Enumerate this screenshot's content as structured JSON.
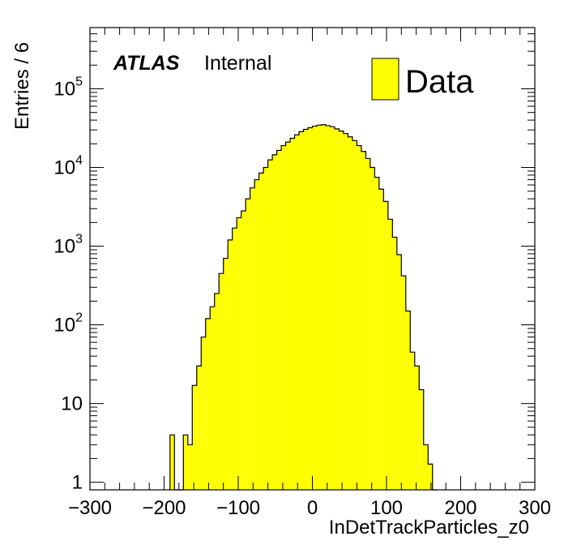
{
  "chart_data": {
    "type": "histogram",
    "xlabel": "InDetTrackParticles_z0",
    "ylabel": "Entries / 6",
    "xlim": [
      -300,
      300
    ],
    "ylim": [
      0.8,
      600000
    ],
    "yscale": "log",
    "x_ticks": [
      "−300",
      "−200",
      "−100",
      "0",
      "100",
      "200",
      "300"
    ],
    "y_ticks": [
      {
        "base": "1",
        "exp": ""
      },
      {
        "base": "10",
        "exp": ""
      },
      {
        "base": "10",
        "exp": "2"
      },
      {
        "base": "10",
        "exp": "3"
      },
      {
        "base": "10",
        "exp": "4"
      },
      {
        "base": "10",
        "exp": "5"
      }
    ],
    "bin_width": 6,
    "first_bin_low": -192,
    "counts": [
      4,
      0,
      0,
      4,
      3,
      17,
      30,
      70,
      120,
      170,
      250,
      450,
      700,
      1200,
      1700,
      2300,
      2800,
      4000,
      5500,
      7000,
      8500,
      10000,
      12500,
      14500,
      16500,
      19000,
      21000,
      23500,
      26000,
      28500,
      30500,
      32000,
      33500,
      34500,
      35000,
      34000,
      33000,
      31000,
      29000,
      27000,
      24500,
      22000,
      19000,
      16000,
      13000,
      10000,
      7500,
      5300,
      3700,
      2200,
      1300,
      780,
      420,
      150,
      45,
      30,
      15,
      3,
      1.7,
      0.5
    ],
    "fill_color": "#ffff00",
    "line_color": "#000000",
    "grid": false,
    "legend": {
      "position": "top-right",
      "entries": [
        "Data"
      ]
    },
    "annotation": {
      "bold": "ATLAS",
      "plain": "Internal"
    }
  }
}
